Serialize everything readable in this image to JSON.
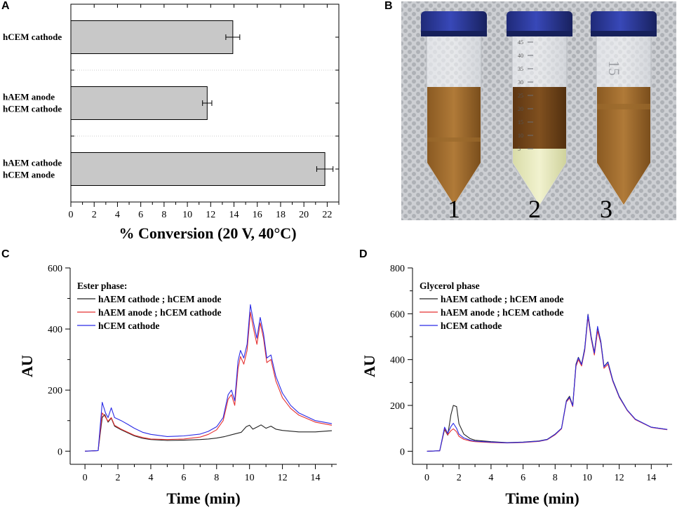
{
  "panels": {
    "a": "A",
    "b": "B",
    "c": "C",
    "d": "D"
  },
  "chart_data": [
    {
      "id": "A",
      "type": "bar",
      "orientation": "horizontal",
      "categories": [
        [
          "hCEM cathode"
        ],
        [
          "hAEM anode",
          "hCEM cathode"
        ],
        [
          "hAEM cathode",
          "hCEM anode"
        ]
      ],
      "values": [
        13.9,
        11.7,
        21.8
      ],
      "errors": [
        0.6,
        0.4,
        0.7
      ],
      "xlabel": "% Conversion (20 V, 40°C)",
      "xlim": [
        0,
        23
      ],
      "xticks": [
        "0",
        "2",
        "4",
        "6",
        "8",
        "10",
        "12",
        "14",
        "16",
        "18",
        "20",
        "22"
      ],
      "bar_color": "#c8c8c8"
    },
    {
      "id": "C",
      "type": "line",
      "xlabel": "Time (min)",
      "ylabel": "AU",
      "xlim": [
        -0.9,
        15.3
      ],
      "ylim": [
        -43,
        600
      ],
      "xticks": [
        "0",
        "2",
        "4",
        "6",
        "8",
        "10",
        "12",
        "14"
      ],
      "yticks": [
        "0",
        "200",
        "400",
        "600"
      ],
      "legend_title": "Ester phase:",
      "series": [
        {
          "name": "hAEM cathode ; hCEM anode",
          "color": "#222222",
          "points": [
            [
              0,
              0
            ],
            [
              0.8,
              2
            ],
            [
              1.05,
              110
            ],
            [
              1.2,
              120
            ],
            [
              1.4,
              95
            ],
            [
              1.6,
              108
            ],
            [
              1.8,
              82
            ],
            [
              2.2,
              70
            ],
            [
              2.6,
              60
            ],
            [
              3,
              50
            ],
            [
              3.5,
              42
            ],
            [
              4,
              38
            ],
            [
              5,
              35
            ],
            [
              6,
              36
            ],
            [
              7,
              38
            ],
            [
              7.5,
              40
            ],
            [
              8,
              43
            ],
            [
              8.5,
              48
            ],
            [
              9,
              55
            ],
            [
              9.5,
              62
            ],
            [
              9.8,
              80
            ],
            [
              10,
              85
            ],
            [
              10.2,
              72
            ],
            [
              10.5,
              80
            ],
            [
              10.7,
              86
            ],
            [
              11,
              75
            ],
            [
              11.3,
              82
            ],
            [
              11.6,
              72
            ],
            [
              12,
              68
            ],
            [
              13,
              63
            ],
            [
              14,
              63
            ],
            [
              15,
              67
            ]
          ]
        },
        {
          "name": "hAEM anode ; hCEM cathode",
          "color": "#e53030",
          "points": [
            [
              0,
              0
            ],
            [
              0.8,
              2
            ],
            [
              1.05,
              125
            ],
            [
              1.2,
              115
            ],
            [
              1.4,
              98
            ],
            [
              1.6,
              110
            ],
            [
              1.8,
              85
            ],
            [
              2.2,
              72
            ],
            [
              2.6,
              62
            ],
            [
              3,
              52
            ],
            [
              3.5,
              45
            ],
            [
              4,
              40
            ],
            [
              5,
              38
            ],
            [
              6,
              40
            ],
            [
              7,
              46
            ],
            [
              7.5,
              55
            ],
            [
              8,
              70
            ],
            [
              8.4,
              100
            ],
            [
              8.7,
              170
            ],
            [
              8.9,
              185
            ],
            [
              9.1,
              150
            ],
            [
              9.3,
              270
            ],
            [
              9.45,
              310
            ],
            [
              9.65,
              285
            ],
            [
              9.85,
              330
            ],
            [
              10.05,
              455
            ],
            [
              10.25,
              400
            ],
            [
              10.45,
              350
            ],
            [
              10.65,
              420
            ],
            [
              10.85,
              370
            ],
            [
              11.05,
              290
            ],
            [
              11.3,
              300
            ],
            [
              11.6,
              230
            ],
            [
              12,
              175
            ],
            [
              12.5,
              140
            ],
            [
              13,
              118
            ],
            [
              14,
              95
            ],
            [
              15,
              85
            ]
          ]
        },
        {
          "name": "hCEM cathode",
          "color": "#2a2ae6",
          "points": [
            [
              0,
              0
            ],
            [
              0.8,
              2
            ],
            [
              1.05,
              160
            ],
            [
              1.25,
              125
            ],
            [
              1.4,
              110
            ],
            [
              1.6,
              142
            ],
            [
              1.8,
              110
            ],
            [
              2.2,
              100
            ],
            [
              2.6,
              88
            ],
            [
              3,
              75
            ],
            [
              3.5,
              62
            ],
            [
              4,
              55
            ],
            [
              5,
              48
            ],
            [
              6,
              50
            ],
            [
              7,
              56
            ],
            [
              7.5,
              65
            ],
            [
              8,
              80
            ],
            [
              8.4,
              110
            ],
            [
              8.7,
              185
            ],
            [
              8.9,
              200
            ],
            [
              9.1,
              165
            ],
            [
              9.3,
              295
            ],
            [
              9.45,
              330
            ],
            [
              9.65,
              305
            ],
            [
              9.85,
              350
            ],
            [
              10.05,
              480
            ],
            [
              10.25,
              420
            ],
            [
              10.45,
              370
            ],
            [
              10.65,
              438
            ],
            [
              10.85,
              385
            ],
            [
              11.05,
              305
            ],
            [
              11.3,
              315
            ],
            [
              11.6,
              245
            ],
            [
              12,
              190
            ],
            [
              12.5,
              150
            ],
            [
              13,
              125
            ],
            [
              14,
              100
            ],
            [
              15,
              90
            ]
          ]
        }
      ]
    },
    {
      "id": "D",
      "type": "line",
      "xlabel": "Time (min)",
      "ylabel": "AU",
      "xlim": [
        -0.9,
        15.3
      ],
      "ylim": [
        -57,
        800
      ],
      "xticks": [
        "0",
        "2",
        "4",
        "6",
        "8",
        "10",
        "12",
        "14"
      ],
      "yticks": [
        "0",
        "200",
        "400",
        "600",
        "800"
      ],
      "legend_title": "Glycerol phase",
      "series": [
        {
          "name": "hAEM cathode ; hCEM anode",
          "color": "#222222",
          "points": [
            [
              0,
              0
            ],
            [
              0.8,
              2
            ],
            [
              1.1,
              95
            ],
            [
              1.3,
              70
            ],
            [
              1.5,
              160
            ],
            [
              1.65,
              200
            ],
            [
              1.85,
              195
            ],
            [
              2.0,
              120
            ],
            [
              2.3,
              75
            ],
            [
              2.7,
              55
            ],
            [
              3,
              48
            ],
            [
              3.5,
              45
            ],
            [
              4,
              42
            ],
            [
              5,
              38
            ],
            [
              6,
              40
            ],
            [
              7,
              45
            ],
            [
              7.5,
              52
            ],
            [
              8,
              75
            ],
            [
              8.4,
              100
            ],
            [
              8.7,
              220
            ],
            [
              8.9,
              240
            ],
            [
              9.1,
              200
            ],
            [
              9.3,
              380
            ],
            [
              9.45,
              410
            ],
            [
              9.65,
              380
            ],
            [
              9.85,
              450
            ],
            [
              10.05,
              598
            ],
            [
              10.25,
              500
            ],
            [
              10.45,
              430
            ],
            [
              10.65,
              540
            ],
            [
              10.85,
              480
            ],
            [
              11.05,
              370
            ],
            [
              11.3,
              390
            ],
            [
              11.6,
              310
            ],
            [
              12,
              240
            ],
            [
              12.5,
              180
            ],
            [
              13,
              140
            ],
            [
              14,
              105
            ],
            [
              15,
              95
            ]
          ]
        },
        {
          "name": "hAEM anode ; hCEM cathode",
          "color": "#e53030",
          "points": [
            [
              0,
              0
            ],
            [
              0.8,
              2
            ],
            [
              1.1,
              100
            ],
            [
              1.3,
              72
            ],
            [
              1.5,
              90
            ],
            [
              1.65,
              98
            ],
            [
              1.85,
              85
            ],
            [
              2.0,
              65
            ],
            [
              2.3,
              52
            ],
            [
              2.7,
              45
            ],
            [
              3,
              42
            ],
            [
              3.5,
              40
            ],
            [
              4,
              38
            ],
            [
              5,
              36
            ],
            [
              6,
              38
            ],
            [
              7,
              43
            ],
            [
              7.5,
              50
            ],
            [
              8,
              72
            ],
            [
              8.4,
              98
            ],
            [
              8.7,
              215
            ],
            [
              8.9,
              232
            ],
            [
              9.1,
              195
            ],
            [
              9.3,
              370
            ],
            [
              9.45,
              400
            ],
            [
              9.65,
              372
            ],
            [
              9.85,
              440
            ],
            [
              10.05,
              585
            ],
            [
              10.25,
              490
            ],
            [
              10.45,
              420
            ],
            [
              10.65,
              525
            ],
            [
              10.85,
              470
            ],
            [
              11.05,
              362
            ],
            [
              11.3,
              380
            ],
            [
              11.6,
              305
            ],
            [
              12,
              236
            ],
            [
              12.5,
              178
            ],
            [
              13,
              138
            ],
            [
              14,
              104
            ],
            [
              15,
              94
            ]
          ]
        },
        {
          "name": "hCEM cathode",
          "color": "#2a2ae6",
          "points": [
            [
              0,
              0
            ],
            [
              0.8,
              2
            ],
            [
              1.1,
              105
            ],
            [
              1.3,
              78
            ],
            [
              1.5,
              108
            ],
            [
              1.65,
              122
            ],
            [
              1.85,
              100
            ],
            [
              2.0,
              75
            ],
            [
              2.3,
              58
            ],
            [
              2.7,
              48
            ],
            [
              3,
              44
            ],
            [
              3.5,
              42
            ],
            [
              4,
              40
            ],
            [
              5,
              37
            ],
            [
              6,
              39
            ],
            [
              7,
              44
            ],
            [
              7.5,
              51
            ],
            [
              8,
              74
            ],
            [
              8.4,
              100
            ],
            [
              8.7,
              218
            ],
            [
              8.9,
              236
            ],
            [
              9.1,
              198
            ],
            [
              9.3,
              376
            ],
            [
              9.45,
              408
            ],
            [
              9.65,
              378
            ],
            [
              9.85,
              446
            ],
            [
              10.05,
              596
            ],
            [
              10.25,
              496
            ],
            [
              10.45,
              428
            ],
            [
              10.65,
              545
            ],
            [
              10.85,
              476
            ],
            [
              11.05,
              368
            ],
            [
              11.3,
              388
            ],
            [
              11.6,
              308
            ],
            [
              12,
              238
            ],
            [
              12.5,
              180
            ],
            [
              13,
              140
            ],
            [
              14,
              105
            ],
            [
              15,
              95
            ]
          ]
        }
      ]
    }
  ],
  "photo": {
    "tube_labels": [
      "1",
      "2",
      "3"
    ],
    "tube2_scale": [
      "45",
      "40",
      "35",
      "30",
      "25",
      "20",
      "15",
      "10",
      "5"
    ],
    "tube3_label": "15"
  }
}
